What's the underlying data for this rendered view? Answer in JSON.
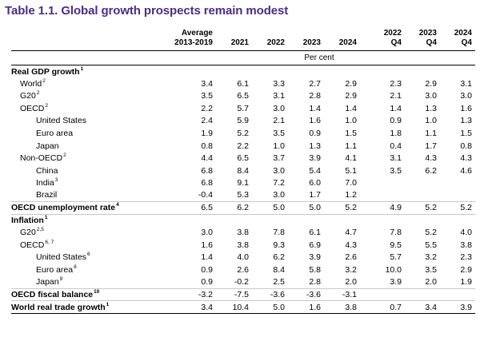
{
  "title": "Table 1.1. Global growth prospects remain modest",
  "header": {
    "average_line1": "Average",
    "average_line2": "2013-2019",
    "years": [
      "2021",
      "2022",
      "2023",
      "2024"
    ],
    "quarters": [
      {
        "line1": "2022",
        "line2": "Q4"
      },
      {
        "line1": "2023",
        "line2": "Q4"
      },
      {
        "line1": "2024",
        "line2": "Q4"
      }
    ],
    "unit": "Per cent"
  },
  "rows": [
    {
      "label": "Real GDP growth",
      "sup": "1",
      "indent": 0,
      "kind": "section",
      "values": [
        "",
        "",
        "",
        "",
        "",
        "",
        "",
        ""
      ]
    },
    {
      "label": "World",
      "sup": "2",
      "indent": 1,
      "kind": "normal",
      "values": [
        "3.4",
        "6.1",
        "3.3",
        "2.7",
        "2.9",
        "2.3",
        "2.9",
        "3.1"
      ]
    },
    {
      "label": "G20",
      "sup": "2",
      "indent": 1,
      "kind": "normal",
      "values": [
        "3.5",
        "6.5",
        "3.1",
        "2.8",
        "2.9",
        "2.1",
        "3.0",
        "3.0"
      ]
    },
    {
      "label": "OECD",
      "sup": "2",
      "indent": 1,
      "kind": "normal",
      "values": [
        "2.2",
        "5.7",
        "3.0",
        "1.4",
        "1.4",
        "1.4",
        "1.3",
        "1.6"
      ]
    },
    {
      "label": "United States",
      "sup": "",
      "indent": 2,
      "kind": "normal",
      "values": [
        "2.4",
        "5.9",
        "2.1",
        "1.6",
        "1.0",
        "0.9",
        "1.0",
        "1.3"
      ]
    },
    {
      "label": "Euro area",
      "sup": "",
      "indent": 2,
      "kind": "normal",
      "values": [
        "1.9",
        "5.2",
        "3.5",
        "0.9",
        "1.5",
        "1.8",
        "1.1",
        "1.5"
      ]
    },
    {
      "label": "Japan",
      "sup": "",
      "indent": 2,
      "kind": "normal",
      "values": [
        "0.8",
        "2.2",
        "1.0",
        "1.3",
        "1.1",
        "0.4",
        "1.7",
        "0.8"
      ]
    },
    {
      "label": "Non-OECD",
      "sup": "2",
      "indent": 1,
      "kind": "normal",
      "values": [
        "4.4",
        "6.5",
        "3.7",
        "3.9",
        "4.1",
        "3.1",
        "4.3",
        "4.3"
      ]
    },
    {
      "label": "China",
      "sup": "",
      "indent": 2,
      "kind": "normal",
      "values": [
        "6.8",
        "8.4",
        "3.0",
        "5.4",
        "5.1",
        "3.5",
        "6.2",
        "4.6"
      ]
    },
    {
      "label": "India",
      "sup": "3",
      "indent": 2,
      "kind": "normal",
      "values": [
        "6.8",
        "9.1",
        "7.2",
        "6.0",
        "7.0",
        "",
        "",
        ""
      ]
    },
    {
      "label": "Brazil",
      "sup": "",
      "indent": 2,
      "kind": "normal",
      "values": [
        "-0.4",
        "5.3",
        "3.0",
        "1.7",
        "1.2",
        "",
        "",
        ""
      ]
    },
    {
      "label": "OECD unemployment rate",
      "sup": "4",
      "indent": 0,
      "kind": "bold",
      "values": [
        "6.5",
        "6.2",
        "5.0",
        "5.0",
        "5.2",
        "4.9",
        "5.2",
        "5.2"
      ]
    },
    {
      "label": "Inflation",
      "sup": "1",
      "indent": 0,
      "kind": "section",
      "values": [
        "",
        "",
        "",
        "",
        "",
        "",
        "",
        ""
      ]
    },
    {
      "label": "G20",
      "sup": "2,5",
      "indent": 1,
      "kind": "normal",
      "values": [
        "3.0",
        "3.8",
        "7.8",
        "6.1",
        "4.7",
        "7.8",
        "5.2",
        "4.0"
      ]
    },
    {
      "label": "OECD",
      "sup": "6, 7",
      "indent": 1,
      "kind": "normal",
      "values": [
        "1.6",
        "3.8",
        "9.3",
        "6.9",
        "4.3",
        "9.5",
        "5.5",
        "3.8"
      ]
    },
    {
      "label": "United States",
      "sup": "6",
      "indent": 2,
      "kind": "normal",
      "values": [
        "1.4",
        "4.0",
        "6.2",
        "3.9",
        "2.6",
        "5.7",
        "3.2",
        "2.3"
      ]
    },
    {
      "label": "Euro area",
      "sup": "8",
      "indent": 2,
      "kind": "normal",
      "values": [
        "0.9",
        "2.6",
        "8.4",
        "5.8",
        "3.2",
        "10.0",
        "3.5",
        "2.9"
      ]
    },
    {
      "label": "Japan",
      "sup": "9",
      "indent": 2,
      "kind": "normal",
      "values": [
        "0.9",
        "-0.2",
        "2.5",
        "2.8",
        "2.0",
        "3.9",
        "2.0",
        "1.9"
      ]
    },
    {
      "label": "OECD fiscal balance",
      "sup": "10",
      "indent": 0,
      "kind": "bold",
      "values": [
        "-3.2",
        "-7.5",
        "-3.6",
        "-3.6",
        "-3.1",
        "",
        "",
        ""
      ]
    },
    {
      "label": "World real trade growth",
      "sup": "1",
      "indent": 0,
      "kind": "bold",
      "values": [
        "3.4",
        "10.4",
        "5.0",
        "1.6",
        "3.8",
        "0.7",
        "3.4",
        "3.9"
      ]
    }
  ]
}
